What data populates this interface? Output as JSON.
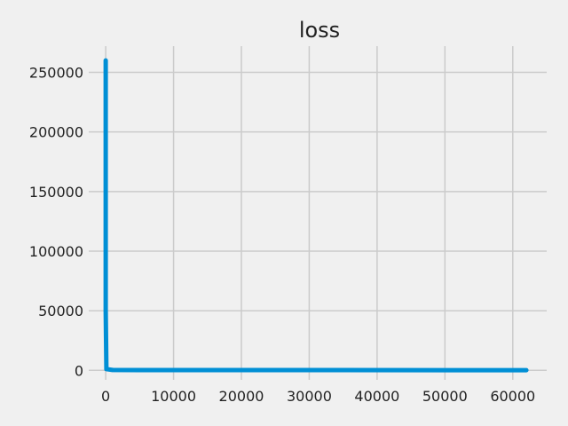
{
  "chart_data": {
    "type": "line",
    "title": "loss",
    "xlabel": "",
    "ylabel": "",
    "xlim": [
      -2500,
      65000
    ],
    "ylim": [
      -8000,
      272000
    ],
    "x_ticks": [
      0,
      10000,
      20000,
      30000,
      40000,
      50000,
      60000
    ],
    "y_ticks": [
      0,
      50000,
      100000,
      150000,
      200000,
      250000
    ],
    "grid": true,
    "series": [
      {
        "color": "#008fd5",
        "points": [
          [
            0,
            260000
          ],
          [
            0,
            50000
          ],
          [
            100,
            1000
          ],
          [
            1000,
            300
          ],
          [
            5000,
            200
          ],
          [
            62000,
            100
          ]
        ]
      }
    ]
  }
}
